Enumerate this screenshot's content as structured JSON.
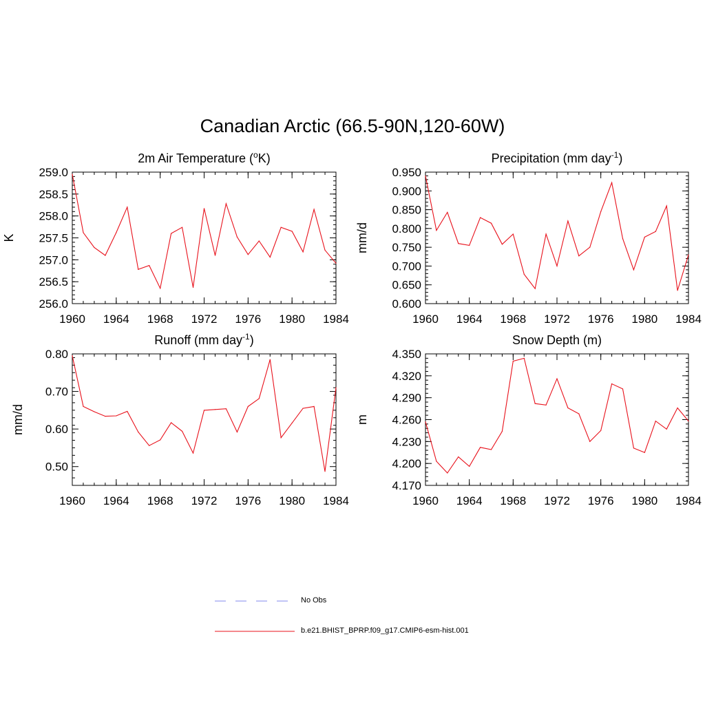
{
  "title": "Canadian Arctic (66.5-90N,120-60W)",
  "colors": {
    "model_line": "#e8101a",
    "obs_line": "#9aa0f0",
    "axis": "#000000"
  },
  "legend": [
    {
      "label": "No Obs",
      "style": "dashed",
      "color": "#9aa0f0"
    },
    {
      "label": "b.e21.BHIST_BPRP.f09_g17.CMIP6-esm-hist.001",
      "style": "solid",
      "color": "#e8101a"
    }
  ],
  "chart_data": [
    {
      "type": "line",
      "title": "2m Air Temperature (",
      "title_sup": "o",
      "title_after": "K)",
      "ylabel": "K",
      "xlim": [
        1960,
        1984
      ],
      "ylim": [
        256.0,
        259.0
      ],
      "xticks": [
        1960,
        1964,
        1968,
        1972,
        1976,
        1980,
        1984
      ],
      "yticks": [
        256.0,
        256.5,
        257.0,
        257.5,
        258.0,
        258.5,
        259.0
      ],
      "ytick_labels": [
        "256.0",
        "256.5",
        "257.0",
        "257.5",
        "258.0",
        "258.5",
        "259.0"
      ],
      "x": [
        1960,
        1961,
        1962,
        1963,
        1964,
        1965,
        1966,
        1967,
        1968,
        1969,
        1970,
        1971,
        1972,
        1973,
        1974,
        1975,
        1976,
        1977,
        1978,
        1979,
        1980,
        1981,
        1982,
        1983,
        1984
      ],
      "series": [
        {
          "name": "b.e21.BHIST_BPRP.f09_g17.CMIP6-esm-hist.001",
          "values": [
            258.95,
            257.62,
            257.28,
            257.1,
            257.62,
            258.2,
            256.78,
            256.87,
            256.35,
            257.6,
            257.74,
            256.37,
            258.17,
            257.1,
            258.28,
            257.52,
            257.12,
            257.43,
            257.06,
            257.74,
            257.65,
            257.18,
            258.15,
            257.22,
            256.92
          ]
        }
      ]
    },
    {
      "type": "line",
      "title": "Precipitation (mm day",
      "title_sup": "-1",
      "title_after": ")",
      "ylabel": "mm/d",
      "xlim": [
        1960,
        1984
      ],
      "ylim": [
        0.6,
        0.95
      ],
      "xticks": [
        1960,
        1964,
        1968,
        1972,
        1976,
        1980,
        1984
      ],
      "yticks": [
        0.6,
        0.65,
        0.7,
        0.75,
        0.8,
        0.85,
        0.9,
        0.95
      ],
      "ytick_labels": [
        "0.600",
        "0.650",
        "0.700",
        "0.750",
        "0.800",
        "0.850",
        "0.900",
        "0.950"
      ],
      "x": [
        1960,
        1961,
        1962,
        1963,
        1964,
        1965,
        1966,
        1967,
        1968,
        1969,
        1970,
        1971,
        1972,
        1973,
        1974,
        1975,
        1976,
        1977,
        1978,
        1979,
        1980,
        1981,
        1982,
        1983,
        1984
      ],
      "series": [
        {
          "name": "b.e21.BHIST_BPRP.f09_g17.CMIP6-esm-hist.001",
          "values": [
            0.94,
            0.795,
            0.843,
            0.76,
            0.755,
            0.829,
            0.814,
            0.758,
            0.785,
            0.678,
            0.64,
            0.785,
            0.7,
            0.82,
            0.727,
            0.75,
            0.845,
            0.922,
            0.773,
            0.69,
            0.777,
            0.792,
            0.86,
            0.635,
            0.73
          ]
        }
      ]
    },
    {
      "type": "line",
      "title": "Runoff (mm day",
      "title_sup": "-1",
      "title_after": ")",
      "ylabel": "mm/d",
      "xlim": [
        1960,
        1984
      ],
      "ylim": [
        0.45,
        0.8
      ],
      "xticks": [
        1960,
        1964,
        1968,
        1972,
        1976,
        1980,
        1984
      ],
      "yticks": [
        0.5,
        0.6,
        0.7,
        0.8
      ],
      "ytick_labels": [
        "0.50",
        "0.60",
        "0.70",
        "0.80"
      ],
      "x": [
        1960,
        1961,
        1962,
        1963,
        1964,
        1965,
        1966,
        1967,
        1968,
        1969,
        1970,
        1971,
        1972,
        1973,
        1974,
        1975,
        1976,
        1977,
        1978,
        1979,
        1980,
        1981,
        1982,
        1983,
        1984
      ],
      "series": [
        {
          "name": "b.e21.BHIST_BPRP.f09_g17.CMIP6-esm-hist.001",
          "values": [
            0.795,
            0.66,
            0.646,
            0.634,
            0.635,
            0.647,
            0.592,
            0.556,
            0.571,
            0.617,
            0.594,
            0.536,
            0.65,
            0.652,
            0.654,
            0.592,
            0.66,
            0.681,
            0.785,
            0.577,
            0.616,
            0.655,
            0.66,
            0.487,
            0.71
          ]
        }
      ]
    },
    {
      "type": "line",
      "title": "Snow Depth (m)",
      "title_sup": "",
      "title_after": "",
      "ylabel": "m",
      "xlim": [
        1960,
        1984
      ],
      "ylim": [
        4.17,
        4.35
      ],
      "xticks": [
        1960,
        1964,
        1968,
        1972,
        1976,
        1980,
        1984
      ],
      "yticks": [
        4.17,
        4.2,
        4.23,
        4.26,
        4.29,
        4.32,
        4.35
      ],
      "ytick_labels": [
        "4.170",
        "4.200",
        "4.230",
        "4.260",
        "4.290",
        "4.320",
        "4.350"
      ],
      "x": [
        1960,
        1961,
        1962,
        1963,
        1964,
        1965,
        1966,
        1967,
        1968,
        1969,
        1970,
        1971,
        1972,
        1973,
        1974,
        1975,
        1976,
        1977,
        1978,
        1979,
        1980,
        1981,
        1982,
        1983,
        1984
      ],
      "series": [
        {
          "name": "b.e21.BHIST_BPRP.f09_g17.CMIP6-esm-hist.001",
          "values": [
            4.257,
            4.203,
            4.187,
            4.209,
            4.196,
            4.222,
            4.219,
            4.244,
            4.34,
            4.344,
            4.282,
            4.28,
            4.316,
            4.276,
            4.268,
            4.23,
            4.245,
            4.309,
            4.302,
            4.221,
            4.215,
            4.258,
            4.247,
            4.276,
            4.258
          ]
        }
      ]
    }
  ]
}
